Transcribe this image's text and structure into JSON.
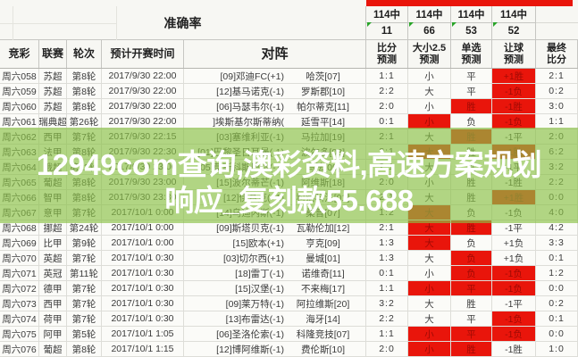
{
  "header": {
    "accuracy_title": "准确率",
    "stats": [
      {
        "total": "114中",
        "hit": "11"
      },
      {
        "total": "114中",
        "hit": "66"
      },
      {
        "total": "114中",
        "hit": "53"
      },
      {
        "total": "114中",
        "hit": "52"
      }
    ]
  },
  "columns": {
    "jingcai": "竞彩",
    "league": "联赛",
    "round": "轮次",
    "time": "预计开赛时间",
    "match": "对阵",
    "pred": [
      {
        "l1": "比分",
        "l2": "预测"
      },
      {
        "l1": "大小2.5",
        "l2": "预测"
      },
      {
        "l1": "单选",
        "l2": "预测"
      },
      {
        "l1": "让球",
        "l2": "预测"
      },
      {
        "l1": "最终",
        "l2": "比分"
      }
    ]
  },
  "rows": [
    {
      "id": "周六058",
      "league": "苏超",
      "round": "第8轮",
      "time": "2017/9/30 22:00",
      "home": "[09]邓迪FC(+1)",
      "away": "哈茨[07]",
      "score": "1:1",
      "size": "小",
      "pick": "平",
      "handicap": "+1胜",
      "final": "2:1",
      "red": [
        "handicap"
      ]
    },
    {
      "id": "周六059",
      "league": "苏超",
      "round": "第8轮",
      "time": "2017/9/30 22:00",
      "home": "[12]基马诺克(-1)",
      "away": "罗斯郡[10]",
      "score": "2:2",
      "size": "大",
      "pick": "平",
      "handicap": "-1负",
      "final": "0:2",
      "red": [
        "handicap"
      ]
    },
    {
      "id": "周六060",
      "league": "苏超",
      "round": "第8轮",
      "time": "2017/9/30 22:00",
      "home": "[06]马瑟韦尔(-1)",
      "away": "帕尔蒂克[11]",
      "score": "2:0",
      "size": "小",
      "pick": "胜",
      "handicap": "-1胜",
      "final": "3:0",
      "red": [
        "pick",
        "handicap"
      ]
    },
    {
      "id": "周六061",
      "league": "瑞典超",
      "round": "第26轮",
      "time": "2017/9/30 22:00",
      "home": "]埃斯基尔斯蒂纳(",
      "away": "延雪平[14]",
      "score": "0:1",
      "size": "小",
      "pick": "负",
      "handicap": "-1负",
      "final": "1:1",
      "red": [
        "size",
        "handicap"
      ]
    },
    {
      "id": "周六062",
      "league": "西甲",
      "round": "第7轮",
      "time": "2017/9/30 22:15",
      "home": "[03]塞维利亚(-1)",
      "away": "马拉加[19]",
      "score": "2:1",
      "size": "大",
      "pick": "胜",
      "handicap": "-1平",
      "final": "2:0",
      "red": [
        "pick"
      ]
    },
    {
      "id": "周六063",
      "league": "法甲",
      "round": "第8轮",
      "time": "2017/9/30 22:30",
      "home": "[01]巴黎圣日耳曼(-1)",
      "away": "波尔多[08]",
      "score": "2:1",
      "size": "大",
      "pick": "胜",
      "handicap": "-1胜",
      "final": "6:2",
      "red": [
        "size",
        "handicap"
      ]
    },
    {
      "id": "周六064",
      "league": "俄超",
      "round": "第12轮",
      "time": "2017/9/30 23:00",
      "home": "[05]莫斯科斯巴达(-1)",
      "away": "乌法[09]",
      "score": "2:1",
      "size": "大",
      "pick": "胜",
      "handicap": "-1平",
      "final": "3:2",
      "red": []
    },
    {
      "id": "周六065",
      "league": "葡超",
      "round": "第8轮",
      "time": "2017/9/30 23:00",
      "home": "[15]波尔蒂芒(-1)",
      "away": "阿维斯[18]",
      "score": "2:0",
      "size": "小",
      "pick": "胜",
      "handicap": "-1胜",
      "final": "2:2",
      "red": []
    },
    {
      "id": "周六066",
      "league": "智甲",
      "round": "第8轮",
      "time": "2017/9/30 23:30",
      "home": "[12]伊基克(+1)",
      "away": "科洛科洛[01]",
      "score": "2:1",
      "size": "大",
      "pick": "胜",
      "handicap": "+1胜",
      "final": "0:0",
      "red": [
        "handicap"
      ]
    },
    {
      "id": "周六067",
      "league": "意甲",
      "round": "第7轮",
      "time": "2017/10/1 0:00",
      "home": "[14]乌迪内斯(-1)",
      "away": "桑普[07]",
      "score": "1:2",
      "size": "大",
      "pick": "负",
      "handicap": "-1负",
      "final": "4:0",
      "red": [
        "size"
      ]
    },
    {
      "id": "周六068",
      "league": "挪超",
      "round": "第24轮",
      "time": "2017/10/1 0:00",
      "home": "[09]斯塔贝克(-1)",
      "away": "瓦勒伦加[12]",
      "score": "2:1",
      "size": "大",
      "pick": "胜",
      "handicap": "-1平",
      "final": "4:2",
      "red": [
        "size",
        "pick"
      ]
    },
    {
      "id": "周六069",
      "league": "比甲",
      "round": "第9轮",
      "time": "2017/10/1 0:00",
      "home": "[15]欧本(+1)",
      "away": "亨克[09]",
      "score": "1:3",
      "size": "大",
      "pick": "负",
      "handicap": "+1负",
      "final": "3:3",
      "red": [
        "size"
      ]
    },
    {
      "id": "周六070",
      "league": "英超",
      "round": "第7轮",
      "time": "2017/10/1 0:30",
      "home": "[03]切尔西(+1)",
      "away": "曼城[01]",
      "score": "1:3",
      "size": "大",
      "pick": "负",
      "handicap": "+1负",
      "final": "0:1",
      "red": [
        "pick"
      ]
    },
    {
      "id": "周六071",
      "league": "英冠",
      "round": "第11轮",
      "time": "2017/10/1 0:30",
      "home": "[18]雷丁(-1)",
      "away": "诺维奇[11]",
      "score": "0:1",
      "size": "小",
      "pick": "负",
      "handicap": "-1负",
      "final": "1:2",
      "red": [
        "pick",
        "handicap"
      ]
    },
    {
      "id": "周六072",
      "league": "德甲",
      "round": "第7轮",
      "time": "2017/10/1 0:30",
      "home": "[15]汉堡(-1)",
      "away": "不来梅[17]",
      "score": "1:1",
      "size": "小",
      "pick": "平",
      "handicap": "-1负",
      "final": "0:0",
      "red": [
        "size",
        "pick",
        "handicap"
      ]
    },
    {
      "id": "周六073",
      "league": "西甲",
      "round": "第7轮",
      "time": "2017/10/1 0:30",
      "home": "[09]莱万特(-1)",
      "away": "阿拉维斯[20]",
      "score": "3:2",
      "size": "大",
      "pick": "胜",
      "handicap": "-1平",
      "final": "0:2",
      "red": []
    },
    {
      "id": "周六074",
      "league": "荷甲",
      "round": "第7轮",
      "time": "2017/10/1 0:30",
      "home": "[13]布雷达(-1)",
      "away": "海牙[14]",
      "score": "2:2",
      "size": "大",
      "pick": "平",
      "handicap": "-1负",
      "final": "0:1",
      "red": [
        "handicap"
      ]
    },
    {
      "id": "周六075",
      "league": "阿甲",
      "round": "第5轮",
      "time": "2017/10/1 1:05",
      "home": "[06]圣洛伦索(-1)",
      "away": "科隆竞技[07]",
      "score": "1:1",
      "size": "小",
      "pick": "平",
      "handicap": "-1负",
      "final": "0:0",
      "red": [
        "size",
        "pick",
        "handicap"
      ]
    },
    {
      "id": "周六076",
      "league": "葡超",
      "round": "第8轮",
      "time": "2017/10/1 1:15",
      "home": "[12]博阿维斯(-1)",
      "away": "费伦斯[10]",
      "score": "2:0",
      "size": "小",
      "pick": "胜",
      "handicap": "-1胜",
      "final": "1:0",
      "red": [
        "size",
        "pick"
      ]
    }
  ],
  "watermark": {
    "line1": "12949cσm查询,澳彩资料,高速方案规划",
    "line2": "响应_复刻款55.688"
  },
  "colors": {
    "accent_red": "#e9150b",
    "red_cell_text": "#9f0a04",
    "watermark_green": "#8ac146",
    "grid": "#dddDd8"
  }
}
